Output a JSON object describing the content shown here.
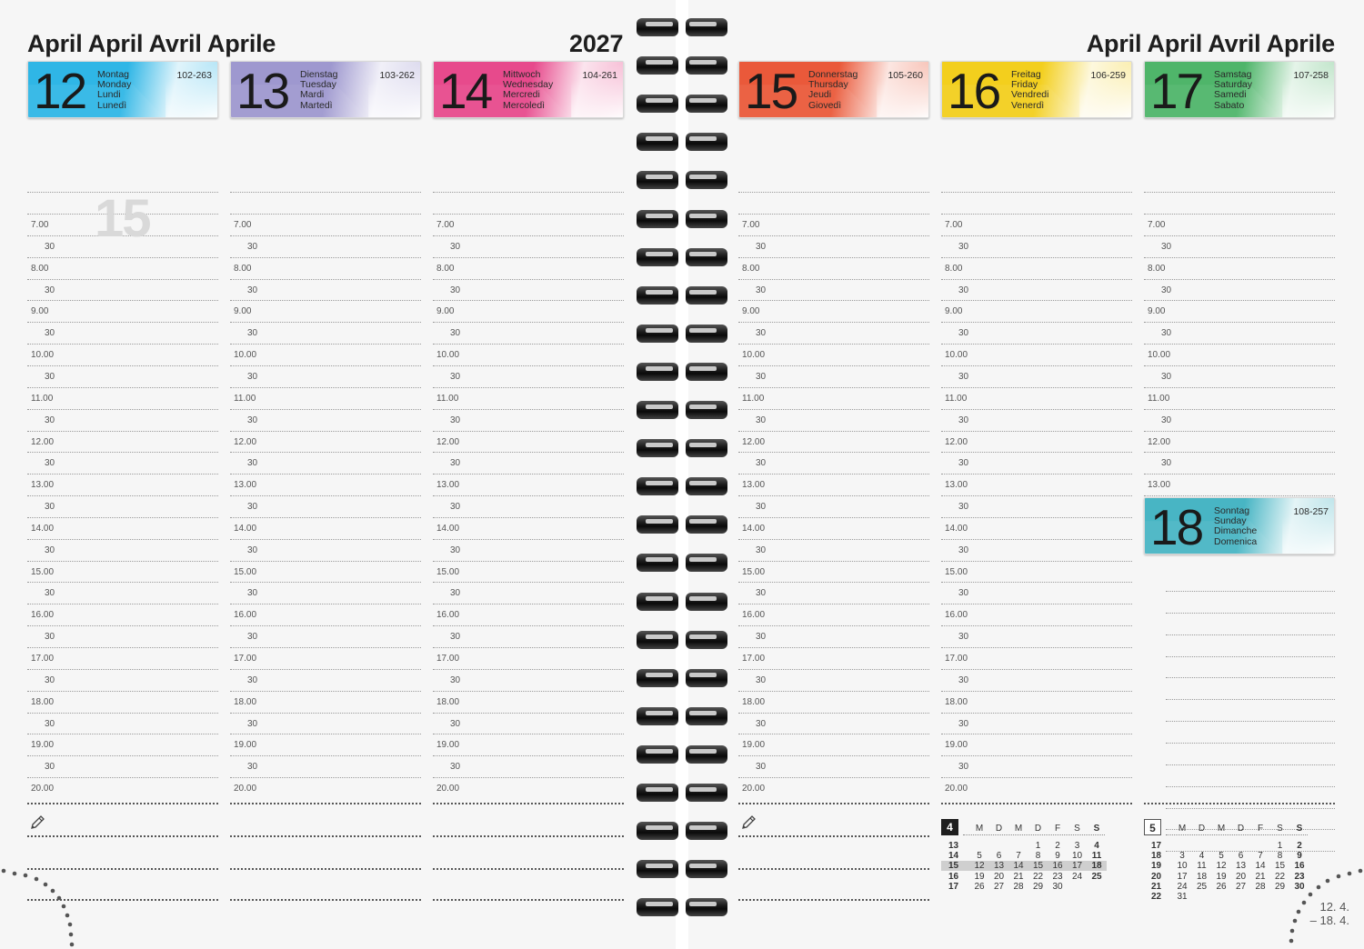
{
  "header": {
    "left_title": "April April Avril Aprile",
    "year": "2027",
    "right_title": "April April Avril Aprile"
  },
  "week_number": "15",
  "days": [
    {
      "num": "12",
      "names": [
        "Montag",
        "Monday",
        "Lundi",
        "Lunedì"
      ],
      "count": "102-263",
      "color": "#2fb6e6"
    },
    {
      "num": "13",
      "names": [
        "Dienstag",
        "Tuesday",
        "Mardi",
        "Martedì"
      ],
      "count": "103-262",
      "color": "#9e98cf"
    },
    {
      "num": "14",
      "names": [
        "Mittwoch",
        "Wednesday",
        "Mercredi",
        "Mercoledì"
      ],
      "count": "104-261",
      "color": "#e74a8c"
    },
    {
      "num": "15",
      "names": [
        "Donnerstag",
        "Thursday",
        "Jeudi",
        "Giovedì"
      ],
      "count": "105-260",
      "color": "#ea5a3a"
    },
    {
      "num": "16",
      "names": [
        "Freitag",
        "Friday",
        "Vendredi",
        "Venerdì"
      ],
      "count": "106-259",
      "color": "#f2cf1e"
    },
    {
      "num": "17",
      "names": [
        "Samstag",
        "Saturday",
        "Samedi",
        "Sabato"
      ],
      "count": "107-258",
      "color": "#4fb56a"
    },
    {
      "num": "18",
      "names": [
        "Sonntag",
        "Sunday",
        "Dimanche",
        "Domenica"
      ],
      "count": "108-257",
      "color": "#49b5c4"
    }
  ],
  "time_slots": [
    "7.00",
    "30",
    "8.00",
    "30",
    "9.00",
    "30",
    "10.00",
    "30",
    "11.00",
    "30",
    "12.00",
    "30",
    "13.00",
    "30",
    "14.00",
    "30",
    "15.00",
    "30",
    "16.00",
    "30",
    "17.00",
    "30",
    "18.00",
    "30",
    "19.00",
    "30",
    "20.00"
  ],
  "mini_calendars": [
    {
      "month_num": "4",
      "headers": [
        "M",
        "D",
        "M",
        "D",
        "F",
        "S",
        "S"
      ],
      "rows": [
        {
          "wk": "13",
          "days": [
            "",
            "",
            "",
            "1",
            "2",
            "3",
            "4"
          ]
        },
        {
          "wk": "14",
          "days": [
            "5",
            "6",
            "7",
            "8",
            "9",
            "10",
            "11"
          ]
        },
        {
          "wk": "15",
          "days": [
            "12",
            "13",
            "14",
            "15",
            "16",
            "17",
            "18"
          ],
          "highlight": true
        },
        {
          "wk": "16",
          "days": [
            "19",
            "20",
            "21",
            "22",
            "23",
            "24",
            "25"
          ]
        },
        {
          "wk": "17",
          "days": [
            "26",
            "27",
            "28",
            "29",
            "30",
            "",
            ""
          ]
        }
      ]
    },
    {
      "month_num": "5",
      "headers": [
        "M",
        "D",
        "M",
        "D",
        "F",
        "S",
        "S"
      ],
      "rows": [
        {
          "wk": "17",
          "days": [
            "",
            "",
            "",
            "",
            "",
            "1",
            "2"
          ]
        },
        {
          "wk": "18",
          "days": [
            "3",
            "4",
            "5",
            "6",
            "7",
            "8",
            "9"
          ]
        },
        {
          "wk": "19",
          "days": [
            "10",
            "11",
            "12",
            "13",
            "14",
            "15",
            "16"
          ]
        },
        {
          "wk": "20",
          "days": [
            "17",
            "18",
            "19",
            "20",
            "21",
            "22",
            "23"
          ]
        },
        {
          "wk": "21",
          "days": [
            "24",
            "25",
            "26",
            "27",
            "28",
            "29",
            "30"
          ]
        },
        {
          "wk": "22",
          "days": [
            "31",
            "",
            "",
            "",
            "",
            "",
            ""
          ]
        }
      ]
    }
  ],
  "week_range": {
    "start": "12. 4.",
    "end": "– 18. 4."
  },
  "icons": {
    "note": "pencil-icon"
  }
}
